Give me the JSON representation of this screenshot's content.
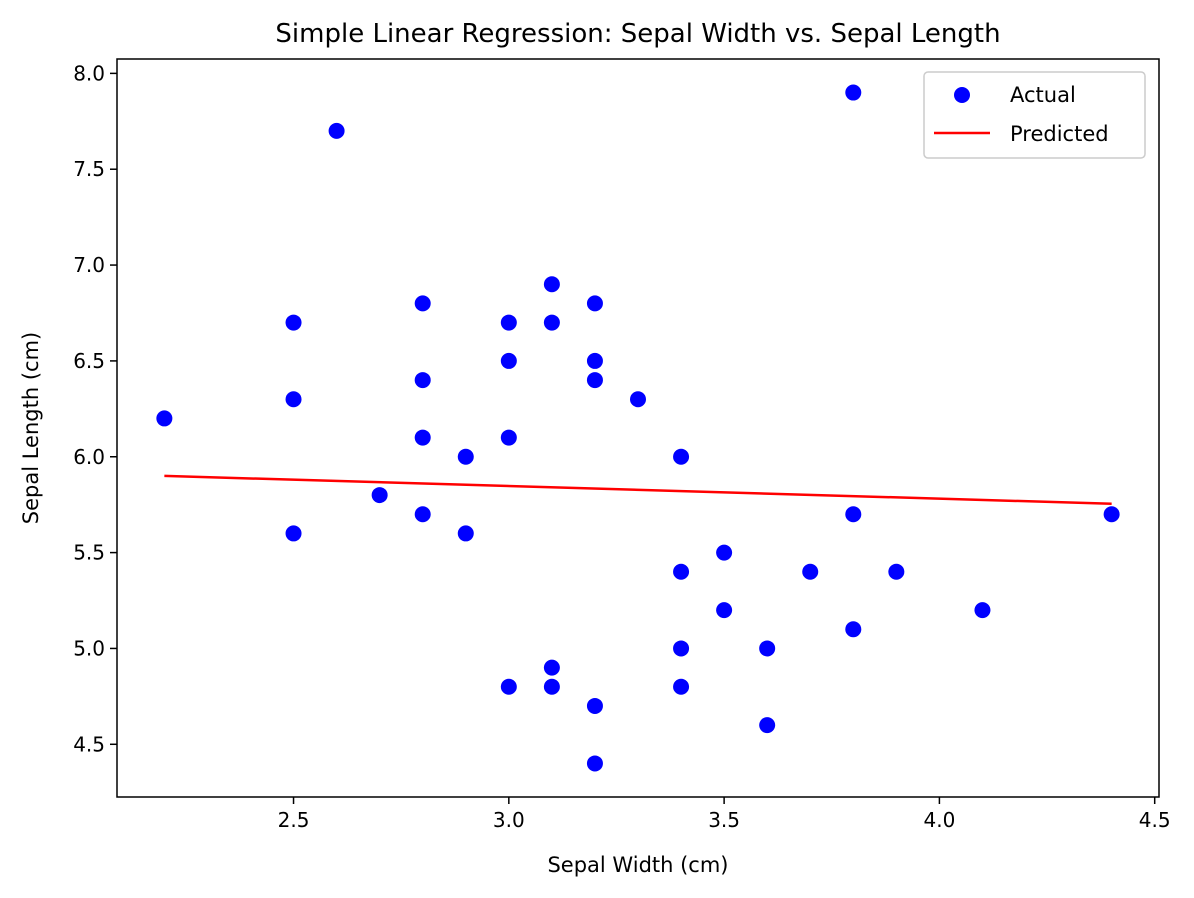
{
  "chart_data": {
    "type": "scatter",
    "title": "Simple Linear Regression: Sepal Width vs. Sepal Length",
    "xlabel": "Sepal Width (cm)",
    "ylabel": "Sepal Length (cm)",
    "xlim": [
      2.09,
      4.51
    ],
    "ylim": [
      4.225,
      8.075
    ],
    "xticks": [
      2.5,
      3.0,
      3.5,
      4.0,
      4.5
    ],
    "xtick_labels": [
      "2.5",
      "3.0",
      "3.5",
      "4.0",
      "4.5"
    ],
    "yticks": [
      4.5,
      5.0,
      5.5,
      6.0,
      6.5,
      7.0,
      7.5,
      8.0
    ],
    "ytick_labels": [
      "4.5",
      "5.0",
      "5.5",
      "6.0",
      "6.5",
      "7.0",
      "7.5",
      "8.0"
    ],
    "grid": false,
    "legend_position": "top-right",
    "series": [
      {
        "name": "Actual",
        "kind": "scatter",
        "color": "#0000ff",
        "points": [
          [
            2.2,
            6.2
          ],
          [
            2.5,
            6.7
          ],
          [
            2.5,
            6.3
          ],
          [
            2.5,
            5.6
          ],
          [
            2.6,
            7.7
          ],
          [
            2.7,
            5.8
          ],
          [
            2.8,
            6.8
          ],
          [
            2.8,
            6.4
          ],
          [
            2.8,
            6.1
          ],
          [
            2.8,
            5.7
          ],
          [
            2.9,
            6.0
          ],
          [
            2.9,
            5.6
          ],
          [
            3.0,
            6.7
          ],
          [
            3.0,
            6.5
          ],
          [
            3.0,
            6.1
          ],
          [
            3.0,
            4.8
          ],
          [
            3.1,
            6.9
          ],
          [
            3.1,
            6.7
          ],
          [
            3.1,
            4.9
          ],
          [
            3.1,
            4.8
          ],
          [
            3.2,
            6.8
          ],
          [
            3.2,
            6.5
          ],
          [
            3.2,
            6.4
          ],
          [
            3.2,
            4.7
          ],
          [
            3.2,
            4.4
          ],
          [
            3.3,
            6.3
          ],
          [
            3.4,
            6.0
          ],
          [
            3.4,
            5.4
          ],
          [
            3.4,
            5.0
          ],
          [
            3.4,
            4.8
          ],
          [
            3.5,
            5.5
          ],
          [
            3.5,
            5.2
          ],
          [
            3.6,
            5.0
          ],
          [
            3.6,
            4.6
          ],
          [
            3.7,
            5.4
          ],
          [
            3.8,
            7.9
          ],
          [
            3.8,
            5.7
          ],
          [
            3.8,
            5.1
          ],
          [
            3.9,
            5.4
          ],
          [
            4.1,
            5.2
          ],
          [
            4.4,
            5.7
          ]
        ]
      },
      {
        "name": "Predicted",
        "kind": "line",
        "color": "#ff0000",
        "points": [
          [
            2.2,
            5.9
          ],
          [
            4.4,
            5.755
          ]
        ]
      }
    ]
  }
}
